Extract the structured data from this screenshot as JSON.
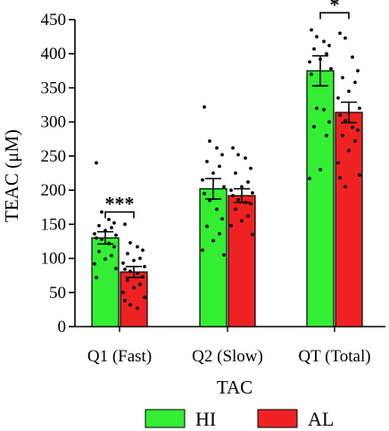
{
  "chart_data": {
    "type": "bar",
    "ylabel": "TEAC (μM)",
    "xlabel": "TAC",
    "ylim": [
      0,
      450
    ],
    "yticks": [
      0,
      50,
      100,
      150,
      200,
      250,
      300,
      350,
      400,
      450
    ],
    "categories": [
      "Q1 (Fast)",
      "Q2 (Slow)",
      "QT (Total)"
    ],
    "legend_position": "bottom",
    "series": [
      {
        "name": "HI",
        "color": "#33ee33",
        "values": [
          130,
          202,
          375
        ],
        "errors": [
          9,
          15,
          22
        ],
        "points": [
          [
            240,
            168,
            157,
            152,
            148,
            145,
            141,
            136,
            134,
            130,
            128,
            122,
            117,
            110,
            104,
            99,
            92,
            85,
            72
          ],
          [
            322,
            272,
            262,
            252,
            242,
            235,
            225,
            215,
            205,
            195,
            185,
            172,
            158,
            147,
            136,
            126,
            112,
            105
          ],
          [
            435,
            425,
            418,
            412,
            407,
            400,
            392,
            388,
            378,
            370,
            320,
            318,
            300,
            293,
            280,
            230,
            217
          ]
        ]
      },
      {
        "name": "AL",
        "color": "#ee2222",
        "values": [
          80,
          192,
          314
        ],
        "errors": [
          8,
          10,
          15
        ],
        "points": [
          [
            150,
            123,
            117,
            112,
            107,
            100,
            97,
            93,
            88,
            84,
            81,
            78,
            73,
            68,
            62,
            57,
            50,
            43,
            38,
            32,
            27
          ],
          [
            262,
            252,
            247,
            232,
            225,
            212,
            205,
            200,
            196,
            192,
            186,
            182,
            180,
            172,
            162,
            155,
            148,
            135
          ],
          [
            430,
            423,
            395,
            375,
            365,
            358,
            345,
            335,
            320,
            310,
            302,
            292,
            288,
            280,
            272,
            258,
            240,
            222,
            218,
            205
          ]
        ]
      }
    ],
    "annotations": [
      {
        "category_index": 0,
        "label": "***",
        "y": 168
      },
      {
        "category_index": 2,
        "label": "*",
        "y": 460
      }
    ]
  }
}
